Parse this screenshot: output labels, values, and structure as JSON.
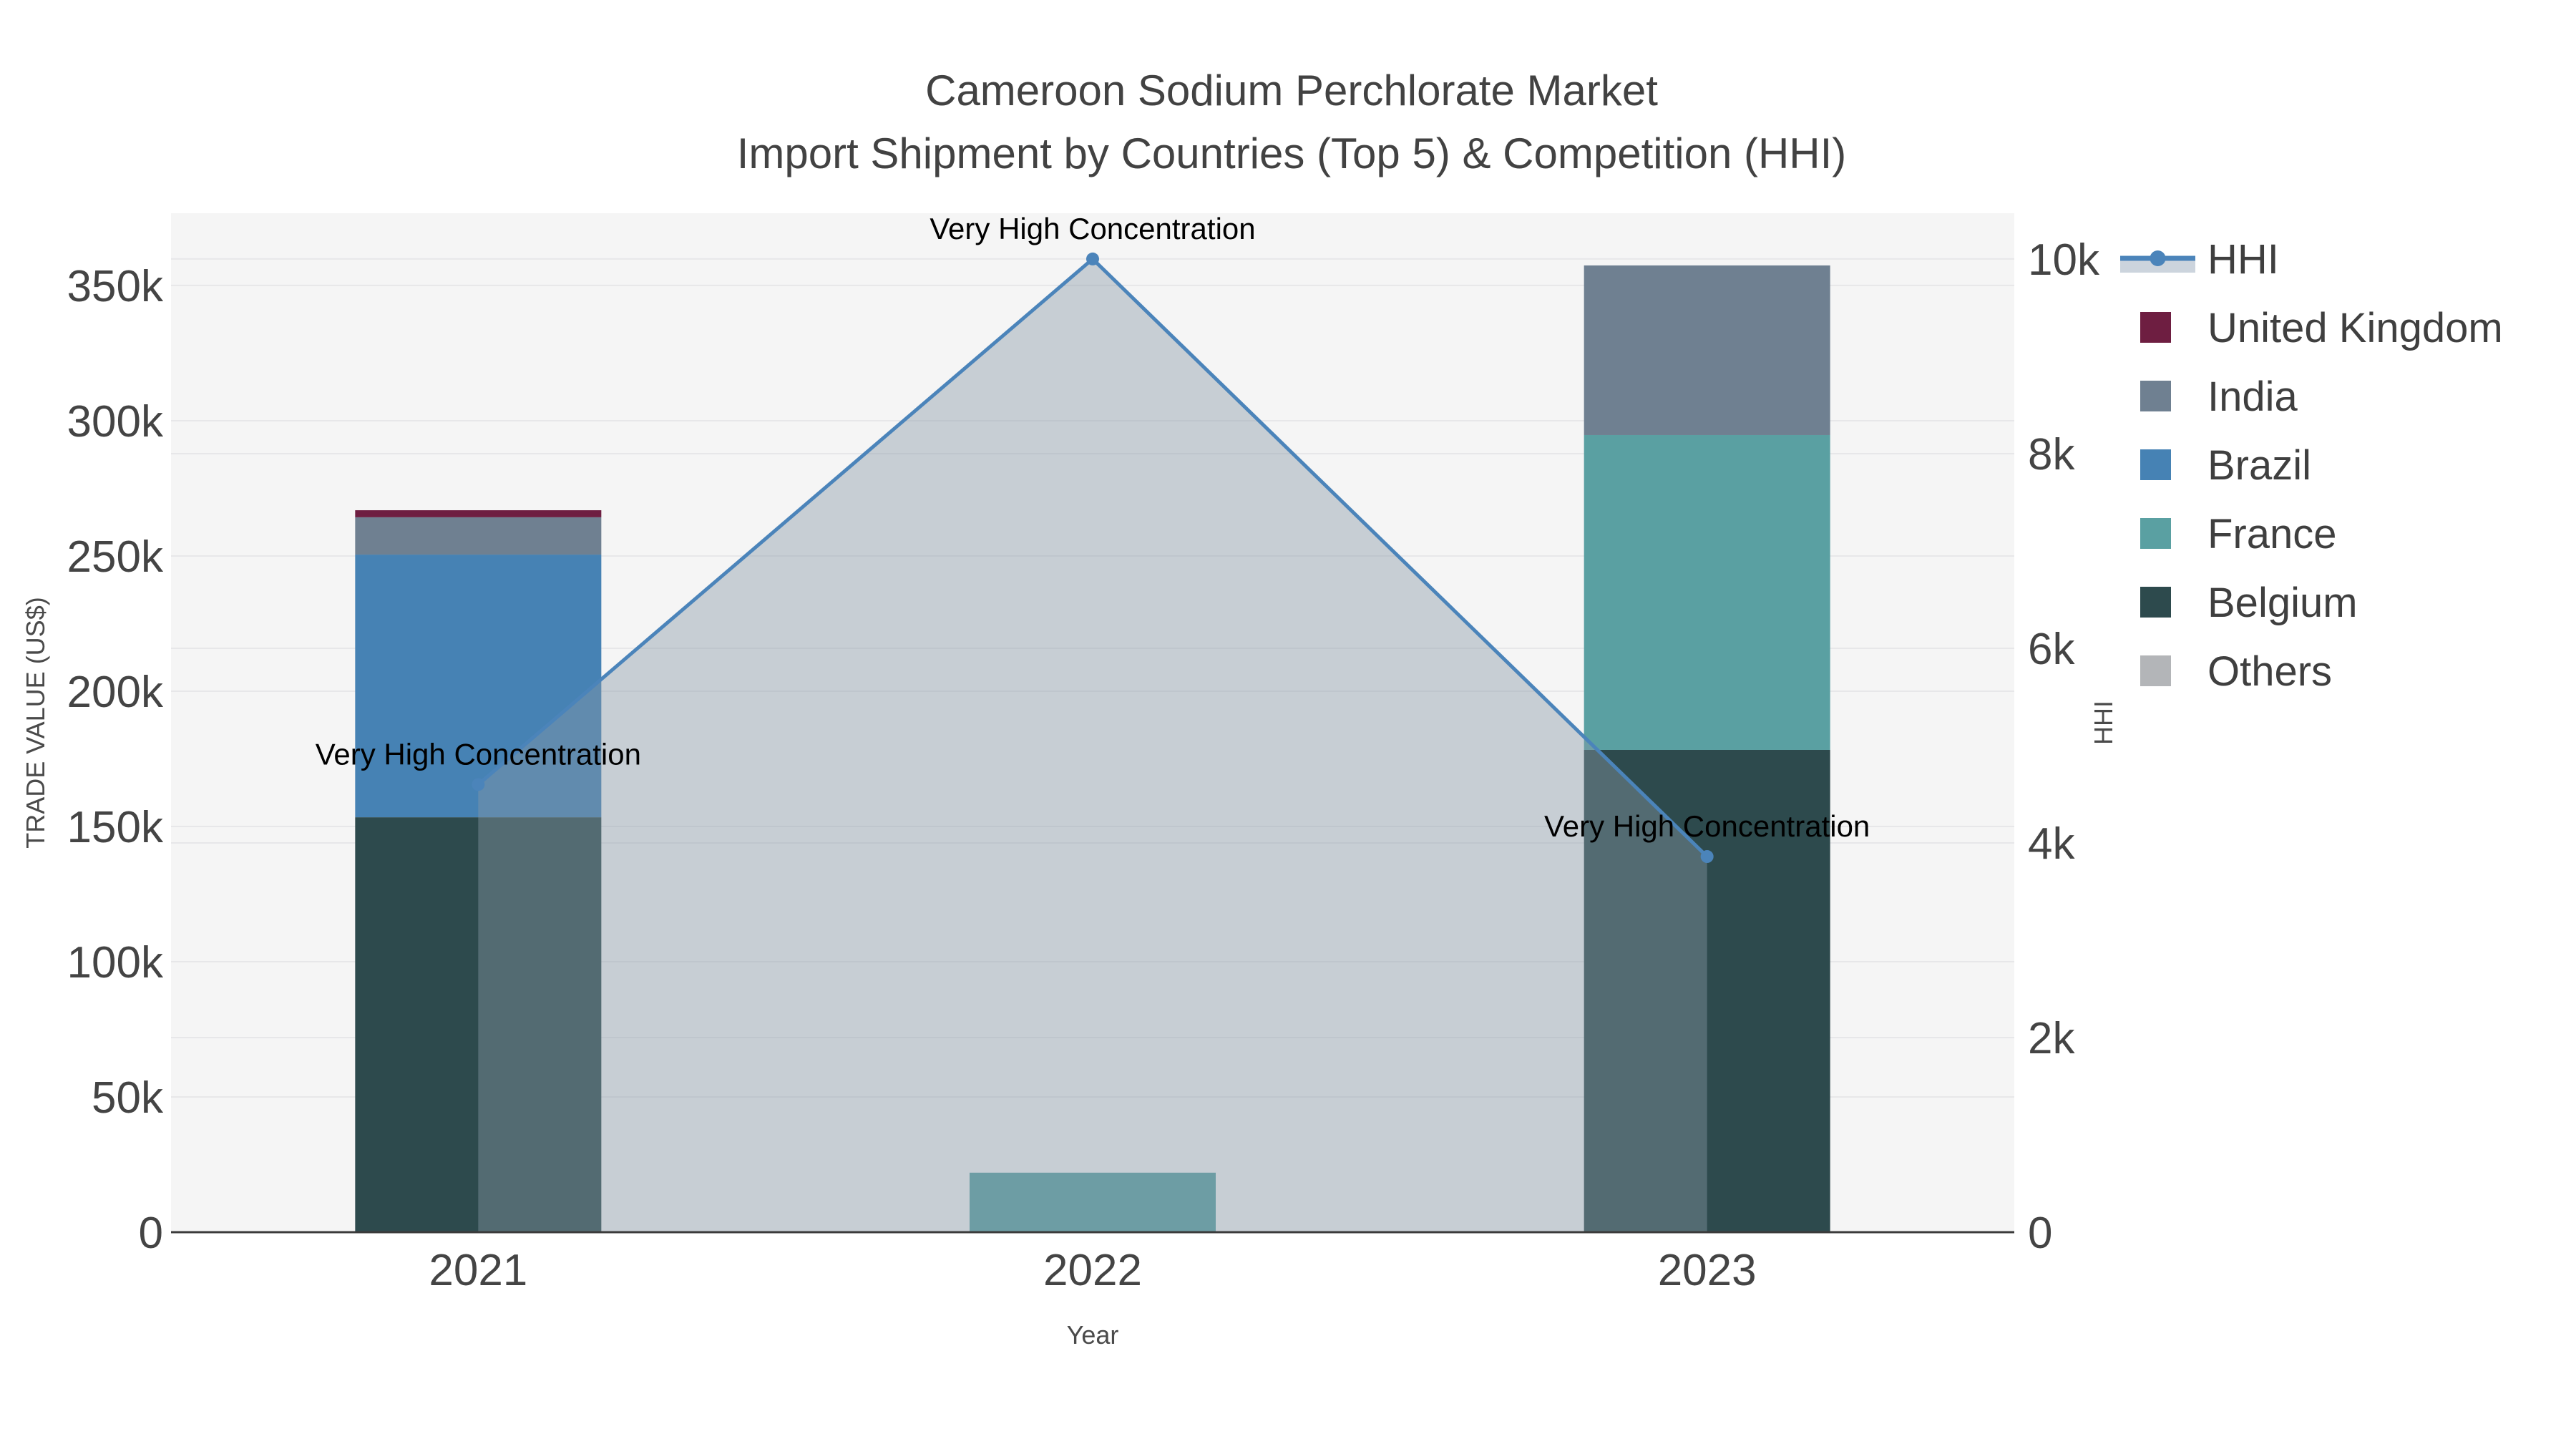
{
  "chart_data": {
    "type": "combo-stacked-bar-and-area-line-dual-axis",
    "title": "Cameroon Sodium Perchlorate Market",
    "subtitle": "Import Shipment by Countries (Top 5) & Competition (HHI)",
    "x_title": "Year",
    "categories": [
      "2021",
      "2022",
      "2023"
    ],
    "y_left": {
      "title": "TRADE VALUE (US$)",
      "tick_values": [
        0,
        50000,
        100000,
        150000,
        200000,
        250000,
        300000,
        350000
      ],
      "tick_labels": [
        "0",
        "50k",
        "100k",
        "150k",
        "200k",
        "250k",
        "300k",
        "350k"
      ],
      "max": 376700
    },
    "y_right": {
      "title": "HHI",
      "tick_values": [
        0,
        2000,
        4000,
        6000,
        8000,
        10000
      ],
      "tick_labels": [
        "0",
        "2k",
        "4k",
        "6k",
        "8k",
        "10k"
      ],
      "max": 10470
    },
    "stacked_bars": [
      {
        "year": "2021",
        "segments": [
          {
            "country": "Belgium",
            "value": 153400
          },
          {
            "country": "Brazil",
            "value": 97100
          },
          {
            "country": "India",
            "value": 13800
          },
          {
            "country": "United Kingdom",
            "value": 2600
          }
        ],
        "total": 266900
      },
      {
        "year": "2022",
        "segments": [
          {
            "country": "France",
            "value": 22000
          }
        ],
        "total": 22000
      },
      {
        "year": "2023",
        "segments": [
          {
            "country": "Belgium",
            "value": 178300
          },
          {
            "country": "France",
            "value": 116400
          },
          {
            "country": "India",
            "value": 62700
          }
        ],
        "total": 357400
      }
    ],
    "hhi_line": {
      "name": "HHI",
      "values": [
        4600,
        10000,
        3860
      ]
    },
    "annotations": [
      {
        "x": "2021",
        "text": "Very High Concentration"
      },
      {
        "x": "2022",
        "text": "Very High Concentration"
      },
      {
        "x": "2023",
        "text": "Very High Concentration"
      }
    ],
    "legend": [
      {
        "label": "HHI",
        "type": "line",
        "color": "#4b84ba"
      },
      {
        "label": "United Kingdom",
        "type": "swatch",
        "color": "#6e1e41"
      },
      {
        "label": "India",
        "type": "swatch",
        "color": "#6f8091"
      },
      {
        "label": "Brazil",
        "type": "swatch",
        "color": "#4682b4"
      },
      {
        "label": "France",
        "type": "swatch",
        "color": "#5aa0a2"
      },
      {
        "label": "Belgium",
        "type": "swatch",
        "color": "#2d4a4d"
      },
      {
        "label": "Others",
        "type": "swatch",
        "color": "#b3b5b8"
      }
    ],
    "colors": {
      "line": "#4b84ba",
      "area_fill": "rgba(136,152,168,0.42)",
      "area_sample": "#ccd4dd",
      "plot_bg": "#f5f5f5",
      "grid": "#e7e7e9",
      "axis_line": "#3b3b3b",
      "tick_text": "#444444",
      "annotation_text": "#000000"
    },
    "layout_hints": {
      "legend_position": "right",
      "grid": "on",
      "bar_width_fraction": 0.4
    }
  }
}
